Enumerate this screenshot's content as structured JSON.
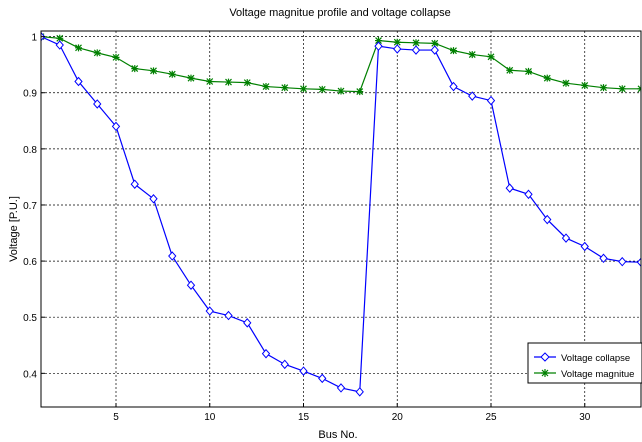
{
  "chart_data": {
    "type": "line",
    "title": "Voltage magnitue profile and voltage collapse",
    "xlabel": "Bus No.",
    "ylabel": "Voltage [P.U.]",
    "xlim": [
      1,
      33
    ],
    "ylim": [
      0.34,
      1.01
    ],
    "xticks": [
      5,
      10,
      15,
      20,
      25,
      30
    ],
    "yticks": [
      0.4,
      0.5,
      0.6,
      0.7,
      0.8,
      0.9,
      1
    ],
    "grid": true,
    "legend_position": "lower-right",
    "x": [
      1,
      2,
      3,
      4,
      5,
      6,
      7,
      8,
      9,
      10,
      11,
      12,
      13,
      14,
      15,
      16,
      17,
      18,
      19,
      20,
      21,
      22,
      23,
      24,
      25,
      26,
      27,
      28,
      29,
      30,
      31,
      32,
      33
    ],
    "series": [
      {
        "name": "Voltage collapse",
        "color": "#0000ff",
        "marker": "diamond",
        "values": [
          1.0,
          0.985,
          0.92,
          0.88,
          0.84,
          0.737,
          0.711,
          0.609,
          0.557,
          0.511,
          0.503,
          0.49,
          0.435,
          0.416,
          0.404,
          0.391,
          0.374,
          0.367,
          0.983,
          0.978,
          0.976,
          0.976,
          0.911,
          0.894,
          0.886,
          0.73,
          0.719,
          0.674,
          0.641,
          0.626,
          0.605,
          0.599,
          0.598
        ]
      },
      {
        "name": "Voltage magnitue",
        "color": "#008000",
        "marker": "star",
        "values": [
          1.0,
          0.997,
          0.98,
          0.971,
          0.963,
          0.943,
          0.939,
          0.933,
          0.926,
          0.92,
          0.919,
          0.918,
          0.911,
          0.909,
          0.907,
          0.906,
          0.903,
          0.902,
          0.993,
          0.99,
          0.989,
          0.988,
          0.975,
          0.968,
          0.964,
          0.94,
          0.938,
          0.926,
          0.917,
          0.913,
          0.909,
          0.907,
          0.907
        ]
      }
    ]
  }
}
